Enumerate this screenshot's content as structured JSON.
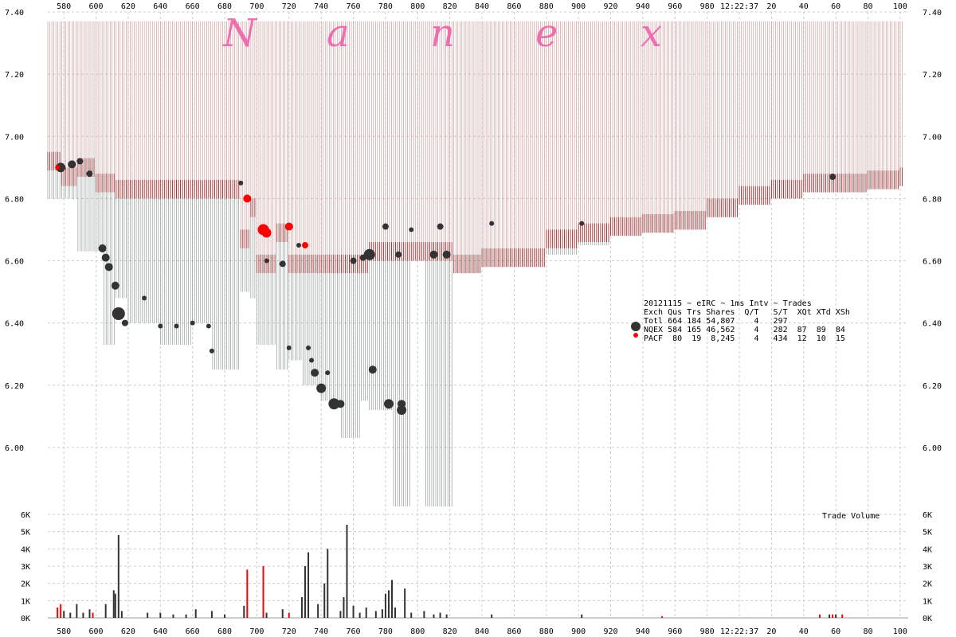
{
  "watermark": [
    "N",
    "a",
    "n",
    "e",
    "x"
  ],
  "clock_label": "12:22:37",
  "volume_label": "Trade Volume",
  "stats": {
    "title": "20121115 ~ eIRC ~ 1ms Intv ~ Trades",
    "header": "Exch Qus Trs Shares  Q/T   S/T  XQt XTd XSh",
    "rows": [
      "Totl 664 184 54,807    4   297",
      "NQEX 584 165 46,562    4   282  87  89  84",
      "PACF  80  19  8,245    4   434  12  10  15"
    ]
  },
  "colors": {
    "ask_light": "#c98b8b",
    "ask_dark": "#a33a3a",
    "bid": "#7f8c88",
    "nqex": "#333333",
    "pacf": "#ff0000",
    "grid": "#cccccc"
  },
  "chart_data": {
    "type": "scatter",
    "x_ticks": [
      "580",
      "600",
      "620",
      "640",
      "660",
      "680",
      "700",
      "720",
      "740",
      "760",
      "780",
      "800",
      "820",
      "840",
      "860",
      "880",
      "900",
      "920",
      "940",
      "960",
      "980",
      "12:22:37",
      "20",
      "40",
      "60",
      "80",
      "100"
    ],
    "price_ticks": [
      "6.00",
      "6.20",
      "6.40",
      "6.60",
      "6.80",
      "7.00",
      "7.20",
      "7.40"
    ],
    "ylim": [
      5.8,
      7.4
    ],
    "volume_ticks": [
      "0K",
      "1K",
      "2K",
      "3K",
      "4K",
      "5K",
      "6K"
    ],
    "volume_ylim": [
      0,
      6000
    ],
    "nbbo": [
      {
        "x": 570,
        "ask": 6.95,
        "bid": 6.8
      },
      {
        "x": 578,
        "ask": 6.9,
        "bid": 6.8
      },
      {
        "x": 588,
        "ask": 6.93,
        "bid": 6.63
      },
      {
        "x": 600,
        "ask": 6.88,
        "bid": 6.63
      },
      {
        "x": 604,
        "ask": 6.88,
        "bid": 6.33
      },
      {
        "x": 612,
        "ask": 6.86,
        "bid": 6.48
      },
      {
        "x": 620,
        "ask": 6.86,
        "bid": 6.4
      },
      {
        "x": 640,
        "ask": 6.86,
        "bid": 6.33
      },
      {
        "x": 660,
        "ask": 6.86,
        "bid": 6.4
      },
      {
        "x": 672,
        "ask": 6.86,
        "bid": 6.25
      },
      {
        "x": 682,
        "ask": 6.86,
        "bid": 6.25
      },
      {
        "x": 690,
        "ask": 6.7,
        "bid": 6.5
      },
      {
        "x": 696,
        "ask": 6.8,
        "bid": 6.48
      },
      {
        "x": 700,
        "ask": 6.62,
        "bid": 6.33
      },
      {
        "x": 712,
        "ask": 6.72,
        "bid": 6.25
      },
      {
        "x": 720,
        "ask": 6.62,
        "bid": 6.28
      },
      {
        "x": 728,
        "ask": 6.62,
        "bid": 6.2
      },
      {
        "x": 740,
        "ask": 6.62,
        "bid": 6.15
      },
      {
        "x": 752,
        "ask": 6.62,
        "bid": 6.03
      },
      {
        "x": 764,
        "ask": 6.62,
        "bid": 6.15
      },
      {
        "x": 770,
        "ask": 6.66,
        "bid": 6.12
      },
      {
        "x": 780,
        "ask": 6.66,
        "bid": 6.12
      },
      {
        "x": 784,
        "ask": 6.66,
        "bid": 5.81
      },
      {
        "x": 796,
        "ask": 6.66,
        "bid": 6.62
      },
      {
        "x": 804,
        "ask": 6.66,
        "bid": 5.81
      },
      {
        "x": 822,
        "ask": 6.62,
        "bid": 6.62
      },
      {
        "x": 840,
        "ask": 6.64,
        "bid": 6.62
      },
      {
        "x": 880,
        "ask": 6.7,
        "bid": 6.62
      },
      {
        "x": 900,
        "ask": 6.72,
        "bid": 6.65
      },
      {
        "x": 920,
        "ask": 6.74,
        "bid": 6.75
      },
      {
        "x": 940,
        "ask": 6.75,
        "bid": 6.78
      },
      {
        "x": 960,
        "ask": 6.76,
        "bid": 6.8
      },
      {
        "x": 980,
        "ask": 6.8,
        "bid": 6.82
      },
      {
        "x": 1000,
        "ask": 6.84,
        "bid": 6.85
      },
      {
        "x": 1020,
        "ask": 6.86,
        "bid": 6.87
      },
      {
        "x": 1040,
        "ask": 6.88,
        "bid": 6.88
      },
      {
        "x": 1060,
        "ask": 6.88,
        "bid": 6.88
      },
      {
        "x": 1080,
        "ask": 6.89,
        "bid": 6.88
      },
      {
        "x": 1100,
        "ask": 6.9,
        "bid": 6.89
      }
    ],
    "series": [
      {
        "name": "NQEX",
        "points": [
          {
            "x": 578,
            "y": 6.9,
            "s": 6
          },
          {
            "x": 585,
            "y": 6.91,
            "s": 5
          },
          {
            "x": 590,
            "y": 6.92,
            "s": 4
          },
          {
            "x": 596,
            "y": 6.88,
            "s": 4
          },
          {
            "x": 604,
            "y": 6.64,
            "s": 5
          },
          {
            "x": 606,
            "y": 6.61,
            "s": 5
          },
          {
            "x": 608,
            "y": 6.58,
            "s": 5
          },
          {
            "x": 612,
            "y": 6.52,
            "s": 5
          },
          {
            "x": 614,
            "y": 6.43,
            "s": 8
          },
          {
            "x": 618,
            "y": 6.4,
            "s": 4
          },
          {
            "x": 630,
            "y": 6.48,
            "s": 3
          },
          {
            "x": 640,
            "y": 6.39,
            "s": 3
          },
          {
            "x": 650,
            "y": 6.39,
            "s": 3
          },
          {
            "x": 660,
            "y": 6.4,
            "s": 3
          },
          {
            "x": 670,
            "y": 6.39,
            "s": 3
          },
          {
            "x": 672,
            "y": 6.31,
            "s": 3
          },
          {
            "x": 690,
            "y": 6.85,
            "s": 3
          },
          {
            "x": 706,
            "y": 6.6,
            "s": 3
          },
          {
            "x": 716,
            "y": 6.59,
            "s": 4
          },
          {
            "x": 720,
            "y": 6.32,
            "s": 3
          },
          {
            "x": 726,
            "y": 6.65,
            "s": 3
          },
          {
            "x": 732,
            "y": 6.32,
            "s": 3
          },
          {
            "x": 734,
            "y": 6.28,
            "s": 3
          },
          {
            "x": 736,
            "y": 6.24,
            "s": 5
          },
          {
            "x": 740,
            "y": 6.19,
            "s": 6
          },
          {
            "x": 744,
            "y": 6.24,
            "s": 3
          },
          {
            "x": 748,
            "y": 6.14,
            "s": 7
          },
          {
            "x": 752,
            "y": 6.14,
            "s": 5
          },
          {
            "x": 760,
            "y": 6.6,
            "s": 4
          },
          {
            "x": 766,
            "y": 6.61,
            "s": 4
          },
          {
            "x": 770,
            "y": 6.62,
            "s": 7
          },
          {
            "x": 772,
            "y": 6.25,
            "s": 5
          },
          {
            "x": 780,
            "y": 6.71,
            "s": 4
          },
          {
            "x": 782,
            "y": 6.14,
            "s": 6
          },
          {
            "x": 788,
            "y": 6.62,
            "s": 4
          },
          {
            "x": 790,
            "y": 6.14,
            "s": 5
          },
          {
            "x": 790,
            "y": 6.12,
            "s": 6
          },
          {
            "x": 796,
            "y": 6.7,
            "s": 3
          },
          {
            "x": 810,
            "y": 6.62,
            "s": 5
          },
          {
            "x": 814,
            "y": 6.71,
            "s": 4
          },
          {
            "x": 818,
            "y": 6.62,
            "s": 5
          },
          {
            "x": 846,
            "y": 6.72,
            "s": 3
          },
          {
            "x": 902,
            "y": 6.72,
            "s": 3
          },
          {
            "x": 1058,
            "y": 6.87,
            "s": 4
          }
        ]
      },
      {
        "name": "PACF",
        "points": [
          {
            "x": 576,
            "y": 6.9,
            "s": 3
          },
          {
            "x": 694,
            "y": 6.8,
            "s": 5
          },
          {
            "x": 704,
            "y": 6.7,
            "s": 7
          },
          {
            "x": 706,
            "y": 6.69,
            "s": 6
          },
          {
            "x": 720,
            "y": 6.71,
            "s": 5
          },
          {
            "x": 730,
            "y": 6.65,
            "s": 4
          }
        ]
      }
    ],
    "volumes": [
      {
        "x": 576,
        "v": 600,
        "c": "PACF"
      },
      {
        "x": 578,
        "v": 800,
        "c": "PACF"
      },
      {
        "x": 580,
        "v": 400,
        "c": "NQEX"
      },
      {
        "x": 584,
        "v": 300,
        "c": "NQEX"
      },
      {
        "x": 588,
        "v": 800,
        "c": "NQEX"
      },
      {
        "x": 592,
        "v": 300,
        "c": "NQEX"
      },
      {
        "x": 596,
        "v": 500,
        "c": "NQEX"
      },
      {
        "x": 598,
        "v": 300,
        "c": "PACF"
      },
      {
        "x": 606,
        "v": 800,
        "c": "NQEX"
      },
      {
        "x": 611,
        "v": 1600,
        "c": "NQEX"
      },
      {
        "x": 612,
        "v": 1400,
        "c": "NQEX"
      },
      {
        "x": 614,
        "v": 4800,
        "c": "NQEX"
      },
      {
        "x": 616,
        "v": 400,
        "c": "NQEX"
      },
      {
        "x": 632,
        "v": 300,
        "c": "NQEX"
      },
      {
        "x": 640,
        "v": 300,
        "c": "NQEX"
      },
      {
        "x": 648,
        "v": 200,
        "c": "NQEX"
      },
      {
        "x": 656,
        "v": 200,
        "c": "NQEX"
      },
      {
        "x": 662,
        "v": 500,
        "c": "NQEX"
      },
      {
        "x": 672,
        "v": 400,
        "c": "NQEX"
      },
      {
        "x": 680,
        "v": 200,
        "c": "NQEX"
      },
      {
        "x": 692,
        "v": 700,
        "c": "NQEX"
      },
      {
        "x": 694,
        "v": 2800,
        "c": "PACF"
      },
      {
        "x": 704,
        "v": 3000,
        "c": "PACF"
      },
      {
        "x": 706,
        "v": 300,
        "c": "NQEX"
      },
      {
        "x": 716,
        "v": 500,
        "c": "NQEX"
      },
      {
        "x": 720,
        "v": 300,
        "c": "PACF"
      },
      {
        "x": 728,
        "v": 1200,
        "c": "NQEX"
      },
      {
        "x": 730,
        "v": 3000,
        "c": "NQEX"
      },
      {
        "x": 732,
        "v": 3800,
        "c": "NQEX"
      },
      {
        "x": 738,
        "v": 800,
        "c": "NQEX"
      },
      {
        "x": 742,
        "v": 2000,
        "c": "NQEX"
      },
      {
        "x": 744,
        "v": 4000,
        "c": "NQEX"
      },
      {
        "x": 752,
        "v": 400,
        "c": "NQEX"
      },
      {
        "x": 754,
        "v": 1200,
        "c": "NQEX"
      },
      {
        "x": 756,
        "v": 5400,
        "c": "NQEX"
      },
      {
        "x": 760,
        "v": 700,
        "c": "NQEX"
      },
      {
        "x": 764,
        "v": 300,
        "c": "NQEX"
      },
      {
        "x": 768,
        "v": 600,
        "c": "NQEX"
      },
      {
        "x": 774,
        "v": 400,
        "c": "NQEX"
      },
      {
        "x": 778,
        "v": 500,
        "c": "NQEX"
      },
      {
        "x": 780,
        "v": 1400,
        "c": "NQEX"
      },
      {
        "x": 782,
        "v": 1600,
        "c": "NQEX"
      },
      {
        "x": 784,
        "v": 2200,
        "c": "NQEX"
      },
      {
        "x": 786,
        "v": 600,
        "c": "NQEX"
      },
      {
        "x": 792,
        "v": 1700,
        "c": "NQEX"
      },
      {
        "x": 796,
        "v": 300,
        "c": "NQEX"
      },
      {
        "x": 804,
        "v": 400,
        "c": "NQEX"
      },
      {
        "x": 810,
        "v": 200,
        "c": "NQEX"
      },
      {
        "x": 814,
        "v": 300,
        "c": "NQEX"
      },
      {
        "x": 818,
        "v": 200,
        "c": "NQEX"
      },
      {
        "x": 846,
        "v": 200,
        "c": "NQEX"
      },
      {
        "x": 902,
        "v": 200,
        "c": "NQEX"
      },
      {
        "x": 952,
        "v": 100,
        "c": "PACF"
      },
      {
        "x": 1050,
        "v": 200,
        "c": "PACF"
      },
      {
        "x": 1056,
        "v": 200,
        "c": "NQEX"
      },
      {
        "x": 1058,
        "v": 200,
        "c": "PACF"
      },
      {
        "x": 1060,
        "v": 200,
        "c": "NQEX"
      },
      {
        "x": 1064,
        "v": 200,
        "c": "PACF"
      }
    ]
  }
}
